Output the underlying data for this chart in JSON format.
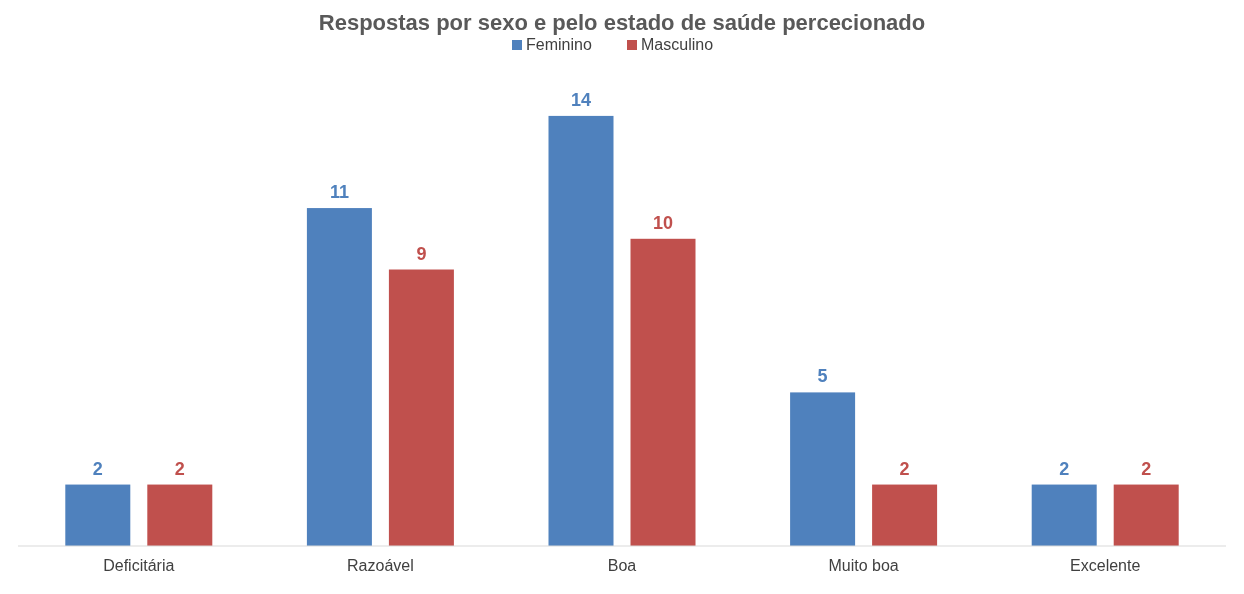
{
  "chart_data": {
    "type": "bar",
    "title": "Respostas por sexo e pelo estado de saúde percecionado",
    "categories": [
      "Deficitária",
      "Razoável",
      "Boa",
      "Muito boa",
      "Excelente"
    ],
    "series": [
      {
        "name": "Feminino",
        "color": "#4f81bd",
        "values": [
          2,
          11,
          14,
          5,
          2
        ]
      },
      {
        "name": "Masculino",
        "color": "#c0504d",
        "values": [
          2,
          9,
          10,
          2,
          2
        ]
      }
    ],
    "data_labels": true,
    "legend": "top",
    "grid": false
  }
}
